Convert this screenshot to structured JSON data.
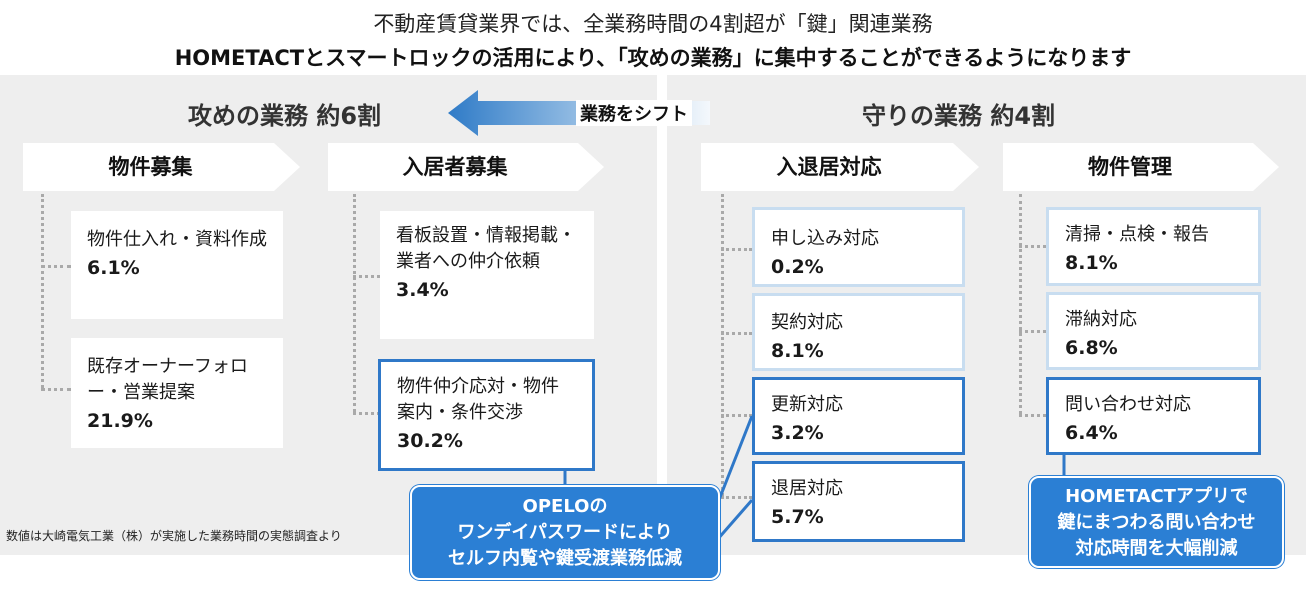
{
  "header": {
    "line1": "不動産賃貸業界では、全業務時間の4割超が「鍵」関連業務",
    "line2": "HOMETACTとスマートロックの活用により、「攻めの業務」に集中することができるようになります"
  },
  "shift_label": "業務をシフト",
  "offense": {
    "title": "攻めの業務 約6割",
    "categories": [
      {
        "name": "物件募集",
        "items": [
          {
            "label": "物件仕入れ・資料作成",
            "pct": "6.1%"
          },
          {
            "label": "既存オーナーフォロー・営業提案",
            "pct": "21.9%"
          }
        ]
      },
      {
        "name": "入居者募集",
        "items": [
          {
            "label": "看板設置・情報掲載・業者への仲介依頼",
            "pct": "3.4%"
          },
          {
            "label": "物件仲介応対・物件案内・条件交渉",
            "pct": "30.2%"
          }
        ]
      }
    ]
  },
  "defense": {
    "title": "守りの業務 約4割",
    "categories": [
      {
        "name": "入退居対応",
        "items": [
          {
            "label": "申し込み対応",
            "pct": "0.2%"
          },
          {
            "label": "契約対応",
            "pct": "8.1%"
          },
          {
            "label": "更新対応",
            "pct": "3.2%"
          },
          {
            "label": "退居対応",
            "pct": "5.7%"
          }
        ]
      },
      {
        "name": "物件管理",
        "items": [
          {
            "label": "清掃・点検・報告",
            "pct": "8.1%"
          },
          {
            "label": "滞納対応",
            "pct": "6.8%"
          },
          {
            "label": "問い合わせ対応",
            "pct": "6.4%"
          }
        ]
      }
    ]
  },
  "callouts": {
    "opelo": [
      "OPELOの",
      "ワンデイパスワードにより",
      "セルフ内覧や鍵受渡業務低減"
    ],
    "hometact": [
      "HOMETACTアプリで",
      "鍵にまつわる問い合わせ",
      "対応時間を大幅削減"
    ]
  },
  "footnote": "数値は大崎電気工業（株）が実施した業務時間の実態調査より",
  "colors": {
    "panel": "#eeeeee",
    "accent_blue": "#2b7fd4",
    "card_light_border": "#c8ddf0",
    "card_dark_border": "#2f78c8"
  }
}
